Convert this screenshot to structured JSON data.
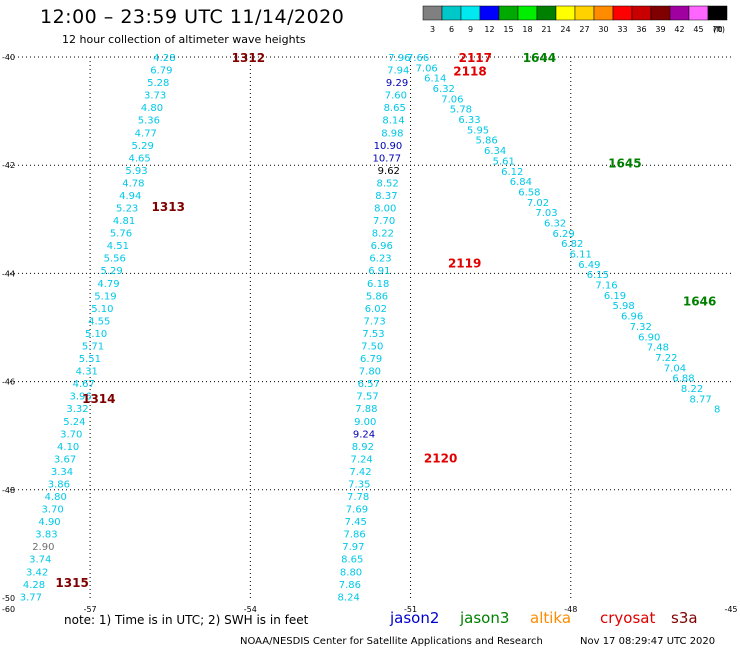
{
  "header": {
    "title": "12:00 – 23:59 UTC 11/14/2020",
    "subtitle": "12 hour collection of altimeter wave heights"
  },
  "legend": {
    "unit": "(ft)",
    "items": [
      {
        "label": "3",
        "color": "#808080"
      },
      {
        "label": "6",
        "color": "#00c8c8"
      },
      {
        "label": "9",
        "color": "#00e8f0"
      },
      {
        "label": "12",
        "color": "#0000ff"
      },
      {
        "label": "15",
        "color": "#00aa00"
      },
      {
        "label": "18",
        "color": "#00ee00"
      },
      {
        "label": "21",
        "color": "#008000"
      },
      {
        "label": "24",
        "color": "#ffff00"
      },
      {
        "label": "27",
        "color": "#ffd200"
      },
      {
        "label": "30",
        "color": "#ff8c00"
      },
      {
        "label": "33",
        "color": "#ff0000"
      },
      {
        "label": "36",
        "color": "#c80000"
      },
      {
        "label": "39",
        "color": "#800000"
      },
      {
        "label": "42",
        "color": "#a000a0"
      },
      {
        "label": "45",
        "color": "#ff66ff"
      },
      {
        "label": "70",
        "color": "#000000"
      }
    ]
  },
  "footer": {
    "note": "note: 1) Time is in UTC; 2) SWH is in feet",
    "satellites": [
      {
        "name": "jason2",
        "color": "#0000cc"
      },
      {
        "name": "jason3",
        "color": "#008000"
      },
      {
        "name": "altika",
        "color": "#ff8c00"
      },
      {
        "name": "cryosat",
        "color": "#e00000"
      },
      {
        "name": "s3a",
        "color": "#800000"
      }
    ],
    "credit": "NOAA/NESDIS Center for Satellite Applications and Research",
    "timestamp": "Nov 17 08:29:47 UTC 2020"
  },
  "colors": {
    "cyan": "#00c8e8",
    "blue": "#0000b4",
    "green": "#008000",
    "red": "#e00000",
    "maroon": "#800000",
    "gray": "#707070"
  },
  "chart_data": {
    "type": "scatter",
    "xlim": [
      -58.5,
      -45
    ],
    "ylim": [
      -50,
      -40
    ],
    "x_ticks": [
      -57,
      -54,
      -51,
      -48,
      -45
    ],
    "y_ticks": [
      -40,
      -42,
      -44,
      -46,
      -48,
      -50
    ],
    "x_tick_labels": [
      "-57",
      "-54",
      "-51",
      "-48",
      "-45"
    ],
    "y_tick_labels": [
      "-40",
      "-42",
      "-44",
      "-46",
      "-48",
      "-50"
    ],
    "corner_label": "-60",
    "grid": true,
    "series": [
      {
        "start": [
          -55.4,
          -40.0
        ],
        "end": [
          -57.9,
          -49.97
        ],
        "color": "cyan",
        "values": [
          "4.28",
          "6.79",
          "5.28",
          "3.73",
          "4.80",
          "5.36",
          "4.77",
          "5.29",
          "4.65",
          "5.93",
          "4.78",
          "4.94",
          "5.23",
          "4.81",
          "5.76",
          "4.51",
          "5.56",
          "5.29",
          "4.79",
          "5.19",
          "5.10",
          "4.55",
          "5.10",
          "5.71",
          "5.51",
          "4.31",
          "4.67",
          "3.96",
          "3.32",
          "5.24",
          "3.70",
          "4.10",
          "3.67",
          "3.34",
          "3.86",
          "4.80",
          "3.70",
          "4.90",
          "3.83",
          "2.90",
          "3.74",
          "3.42",
          "4.28",
          "3.77"
        ],
        "colors": {
          "39": "gray"
        }
      },
      {
        "start": [
          -51.0,
          -40.0
        ],
        "end": [
          -51.95,
          -49.97
        ],
        "color": "cyan",
        "values": [
          "7.96",
          "7.94",
          "9.29",
          "7.60",
          "8.65",
          "8.14",
          "8.98",
          "10.90",
          "10.77",
          "9.62",
          "8.52",
          "8.37",
          "8.00",
          "7.70",
          "8.22",
          "6.96",
          "6.23",
          "6.91",
          "6.18",
          "5.86",
          "6.02",
          "7.73",
          "7.53",
          "7.50",
          "6.79",
          "7.80",
          "6.57",
          "7.57",
          "7.88",
          "9.00",
          "9.24",
          "8.92",
          "7.24",
          "7.42",
          "7.35",
          "7.78",
          "7.69",
          "7.45",
          "7.86",
          "7.97",
          "8.65",
          "8.80",
          "7.86",
          "8.24"
        ],
        "colors": {
          "2": "blue",
          "7": "blue",
          "8": "blue",
          "9": "black",
          "30": "blue"
        }
      },
      {
        "start": [
          -50.65,
          -40.0
        ],
        "end": [
          -45.2,
          -46.5
        ],
        "color": "cyan",
        "values": [
          "7.66",
          "7.06",
          "6.14",
          "6.32",
          "7.06",
          "5.78",
          "6.33",
          "5.95",
          "5.86",
          "6.34",
          "5.61",
          "6.12",
          "6.84",
          "6.58",
          "7.02",
          "7.03",
          "6.32",
          "6.29",
          "6.82",
          "6.11",
          "6.49",
          "6.15",
          "7.16",
          "6.19",
          "5.98",
          "6.96",
          "7.32",
          "6.90",
          "7.48",
          "7.22",
          "7.04",
          "6.88",
          "8.22",
          "8.77",
          "8"
        ]
      }
    ],
    "annotations": [
      {
        "text": "1312",
        "x": -54.35,
        "y": -40.0,
        "color": "maroon"
      },
      {
        "text": "1313",
        "x": -55.85,
        "y": -42.75,
        "color": "maroon"
      },
      {
        "text": "1314",
        "x": -57.15,
        "y": -46.3,
        "color": "maroon"
      },
      {
        "text": "1315",
        "x": -57.65,
        "y": -49.7,
        "color": "maroon"
      },
      {
        "text": "2117",
        "x": -50.1,
        "y": -40.0,
        "color": "red"
      },
      {
        "text": "2118",
        "x": -50.2,
        "y": -40.25,
        "color": "red"
      },
      {
        "text": "2119",
        "x": -50.3,
        "y": -43.8,
        "color": "red"
      },
      {
        "text": "2120",
        "x": -50.75,
        "y": -47.4,
        "color": "red"
      },
      {
        "text": "1644",
        "x": -48.9,
        "y": -40.0,
        "color": "green"
      },
      {
        "text": "1645",
        "x": -47.3,
        "y": -41.95,
        "color": "green"
      },
      {
        "text": "1646",
        "x": -45.9,
        "y": -44.5,
        "color": "green"
      }
    ]
  }
}
